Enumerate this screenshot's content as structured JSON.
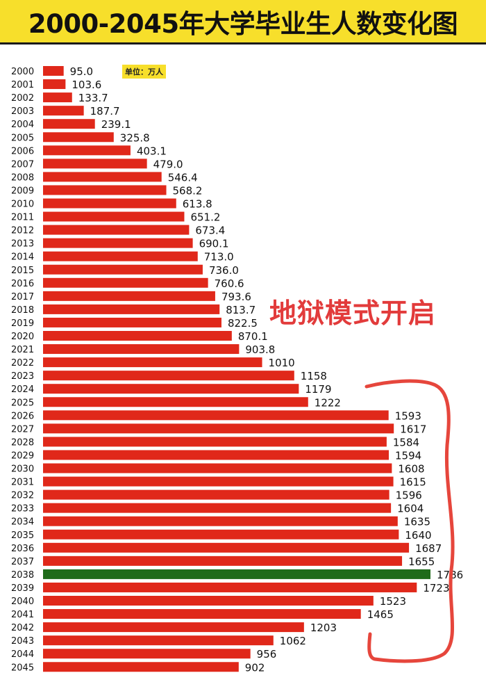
{
  "title": "2000-2045年大学毕业生人数变化图",
  "unit_badge": "单位：万人",
  "annotation": "地狱模式开启",
  "colors": {
    "title_background": "#f7df2b",
    "bar": "#e0281a",
    "highlight_bar": "#1f6b1a",
    "annotation": "#e23b3b"
  },
  "chart_data": {
    "type": "bar",
    "orientation": "horizontal",
    "title": "2000-2045年大学毕业生人数变化图",
    "unit": "万人",
    "highlight_category": "2038",
    "categories": [
      "2000",
      "2001",
      "2002",
      "2003",
      "2004",
      "2005",
      "2006",
      "2007",
      "2008",
      "2009",
      "2010",
      "2011",
      "2012",
      "2013",
      "2014",
      "2015",
      "2016",
      "2017",
      "2018",
      "2019",
      "2020",
      "2021",
      "2022",
      "2023",
      "2024",
      "2025",
      "2026",
      "2027",
      "2028",
      "2029",
      "2030",
      "2031",
      "2032",
      "2033",
      "2034",
      "2035",
      "2036",
      "2037",
      "2038",
      "2039",
      "2040",
      "2041",
      "2042",
      "2043",
      "2044",
      "2045"
    ],
    "values": [
      95.0,
      103.6,
      133.7,
      187.7,
      239.1,
      325.8,
      403.1,
      479.0,
      546.4,
      568.2,
      613.8,
      651.2,
      673.4,
      690.1,
      713.0,
      736.0,
      760.6,
      793.6,
      813.7,
      822.5,
      870.1,
      903.8,
      1010,
      1158,
      1179,
      1222,
      1593,
      1617,
      1584,
      1594,
      1608,
      1615,
      1596,
      1604,
      1635,
      1640,
      1687,
      1655,
      1786,
      1723,
      1523,
      1465,
      1203,
      1062,
      956,
      902
    ],
    "value_labels": [
      "95.0",
      "103.6",
      "133.7",
      "187.7",
      "239.1",
      "325.8",
      "403.1",
      "479.0",
      "546.4",
      "568.2",
      "613.8",
      "651.2",
      "673.4",
      "690.1",
      "713.0",
      "736.0",
      "760.6",
      "793.6",
      "813.7",
      "822.5",
      "870.1",
      "903.8",
      "1010",
      "1158",
      "1179",
      "1222",
      "1593",
      "1617",
      "1584",
      "1594",
      "1608",
      "1615",
      "1596",
      "1604",
      "1635",
      "1640",
      "1687",
      "1655",
      "1786",
      "1723",
      "1523",
      "1465",
      "1203",
      "1062",
      "956",
      "902"
    ]
  }
}
